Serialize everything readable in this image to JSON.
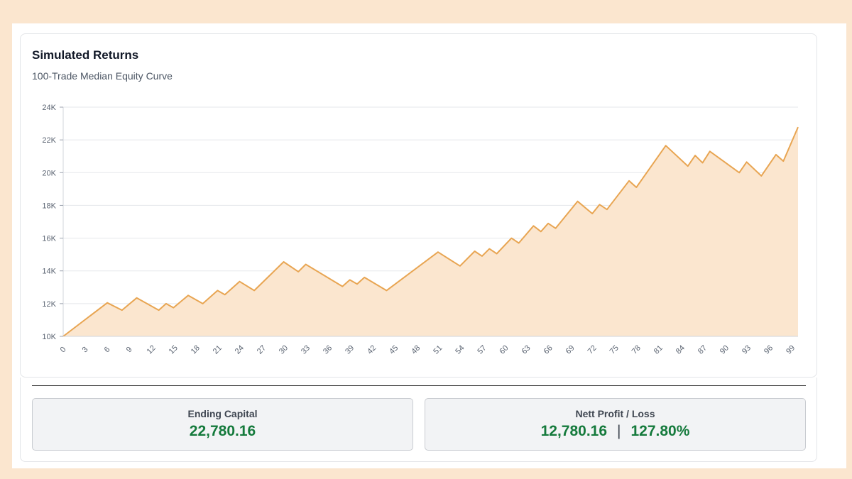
{
  "card": {
    "title": "Simulated Returns",
    "subtitle": "100-Trade Median Equity Curve"
  },
  "colors": {
    "line": "#e8a552",
    "fill": "#fbe6cf",
    "grid": "#e5e7eb",
    "positive": "#157a3c"
  },
  "chart_data": {
    "type": "area",
    "title": "Simulated Returns",
    "subtitle": "100-Trade Median Equity Curve",
    "xlabel": "",
    "ylabel": "",
    "ylim": [
      10000,
      24000
    ],
    "xlim": [
      0,
      100
    ],
    "y_ticks": [
      10000,
      12000,
      14000,
      16000,
      18000,
      20000,
      22000,
      24000
    ],
    "y_tick_labels": [
      "10K",
      "12K",
      "14K",
      "16K",
      "18K",
      "20K",
      "22K",
      "24K"
    ],
    "x_ticks": [
      0,
      3,
      6,
      9,
      12,
      15,
      18,
      21,
      24,
      27,
      30,
      33,
      36,
      39,
      42,
      45,
      48,
      51,
      54,
      57,
      60,
      63,
      66,
      69,
      72,
      75,
      78,
      81,
      84,
      87,
      90,
      93,
      96,
      99
    ],
    "grid": true,
    "legend": "none",
    "series": [
      {
        "x": [
          0,
          6,
          8,
          10,
          13,
          14,
          15,
          17,
          19,
          21,
          22,
          24,
          26,
          30,
          32,
          33,
          38,
          39,
          40,
          41,
          44,
          51,
          54,
          56,
          57,
          58,
          59,
          61,
          62,
          64,
          65,
          66,
          67,
          70,
          72,
          73,
          74,
          77,
          78,
          82,
          85,
          86,
          87,
          88,
          92,
          93,
          95,
          97,
          98,
          100
        ],
        "y": [
          10000,
          12050,
          11600,
          12350,
          11600,
          12000,
          11750,
          12500,
          12000,
          12800,
          12550,
          13350,
          12800,
          14550,
          13950,
          14400,
          13050,
          13450,
          13200,
          13600,
          12800,
          15150,
          14300,
          15200,
          14900,
          15350,
          15050,
          16000,
          15700,
          16750,
          16400,
          16900,
          16600,
          18250,
          17500,
          18050,
          17750,
          19500,
          19100,
          21650,
          20400,
          21050,
          20600,
          21300,
          20000,
          20650,
          19800,
          21100,
          20700,
          22780
        ]
      }
    ]
  },
  "stats": {
    "ending_label": "Ending Capital",
    "ending_value": "22,780.16",
    "profit_label": "Nett Profit / Loss",
    "profit_value": "12,780.16",
    "profit_sep": "|",
    "profit_pct": "127.80%"
  }
}
